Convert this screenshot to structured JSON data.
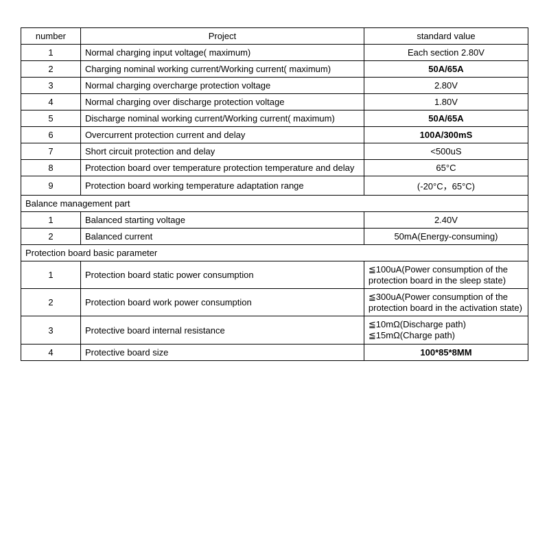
{
  "headers": {
    "number": "number",
    "project": "Project",
    "value": "standard value"
  },
  "main_rows": [
    {
      "num": "1",
      "project": "Normal charging input voltage( maximum)",
      "value": "Each section 2.80V",
      "bold": false
    },
    {
      "num": "2",
      "project": "Charging nominal working current/Working current( maximum)",
      "value": "50A/65A",
      "bold": true
    },
    {
      "num": "3",
      "project": "Normal charging overcharge protection voltage",
      "value": "2.80V",
      "bold": false
    },
    {
      "num": "4",
      "project": "Normal charging over discharge protection voltage",
      "value": "1.80V",
      "bold": false
    },
    {
      "num": "5",
      "project": "Discharge nominal working current/Working current( maximum)",
      "value": "50A/65A",
      "bold": true
    },
    {
      "num": "6",
      "project": "Overcurrent protection current and delay",
      "value": "100A/300mS",
      "bold": true
    },
    {
      "num": "7",
      "project": "Short circuit protection and delay",
      "value": "<500uS",
      "bold": false
    },
    {
      "num": "8",
      "project": "Protection board over temperature protection temperature and delay",
      "value": "65°C",
      "bold": false
    },
    {
      "num": "9",
      "project": "Protection board working temperature adaptation range",
      "value": "(-20°C，65°C)",
      "bold": false
    }
  ],
  "balance_header": "Balance management part",
  "balance_rows": [
    {
      "num": "1",
      "project": "Balanced starting voltage",
      "value": "2.40V",
      "bold": false
    },
    {
      "num": "2",
      "project": "Balanced current",
      "value": "50mA(Energy-consuming)",
      "bold": false
    }
  ],
  "protection_header": "Protection board basic parameter",
  "protection_rows": [
    {
      "num": "1",
      "project": "Protection board static power consumption",
      "value": "≦100uA(Power consumption of the protection board in the sleep state)",
      "bold": false,
      "left": true
    },
    {
      "num": "2",
      "project": "Protection board work power consumption",
      "value": "≦300uA(Power consumption of the protection board in the activation state)",
      "bold": false,
      "left": true
    },
    {
      "num": "3",
      "project": "Protective board internal resistance",
      "value": "≦10mΩ(Discharge path)\n≦15mΩ(Charge path)",
      "bold": false,
      "left": true
    },
    {
      "num": "4",
      "project": "Protective board size",
      "value": "100*85*8MM",
      "bold": true
    }
  ],
  "style": {
    "font_size": 13,
    "border_color": "#000000",
    "background": "#ffffff",
    "col_widths": {
      "number": 80,
      "project": 380,
      "value": 220
    }
  }
}
